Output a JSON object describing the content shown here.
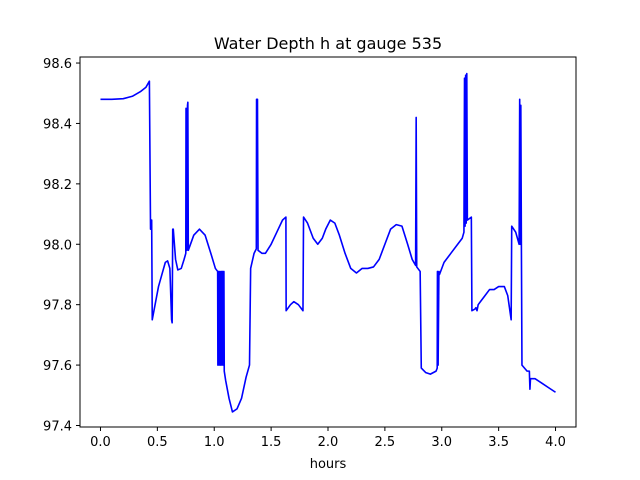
{
  "chart_data": {
    "type": "line",
    "title": "Water Depth h at gauge 535",
    "xlabel": "hours",
    "ylabel": "",
    "xlim": [
      -0.18,
      4.18
    ],
    "ylim": [
      97.395,
      98.62
    ],
    "xticks": [
      0.0,
      0.5,
      1.0,
      1.5,
      2.0,
      2.5,
      3.0,
      3.5,
      4.0
    ],
    "xtick_labels": [
      "0.0",
      "0.5",
      "1.0",
      "1.5",
      "2.0",
      "2.5",
      "3.0",
      "3.5",
      "4.0"
    ],
    "yticks": [
      97.4,
      97.6,
      97.8,
      98.0,
      98.2,
      98.4,
      98.6
    ],
    "ytick_labels": [
      "97.4",
      "97.6",
      "97.8",
      "98.0",
      "98.2",
      "98.4",
      "98.6"
    ],
    "grid": false,
    "legend": "none",
    "series": [
      {
        "color": "#0000ff",
        "points": [
          [
            0.0,
            98.48
          ],
          [
            0.1,
            98.48
          ],
          [
            0.2,
            98.482
          ],
          [
            0.28,
            98.49
          ],
          [
            0.35,
            98.505
          ],
          [
            0.4,
            98.52
          ],
          [
            0.43,
            98.54
          ],
          [
            0.44,
            98.05
          ],
          [
            0.45,
            98.08
          ],
          [
            0.455,
            97.75
          ],
          [
            0.47,
            97.78
          ],
          [
            0.49,
            97.82
          ],
          [
            0.51,
            97.86
          ],
          [
            0.54,
            97.9
          ],
          [
            0.57,
            97.94
          ],
          [
            0.59,
            97.945
          ],
          [
            0.61,
            97.92
          ],
          [
            0.625,
            97.75
          ],
          [
            0.63,
            97.74
          ],
          [
            0.635,
            98.05
          ],
          [
            0.64,
            98.05
          ],
          [
            0.66,
            97.95
          ],
          [
            0.68,
            97.915
          ],
          [
            0.71,
            97.92
          ],
          [
            0.735,
            97.95
          ],
          [
            0.75,
            97.97
          ],
          [
            0.752,
            98.45
          ],
          [
            0.758,
            97.98
          ],
          [
            0.765,
            98.46
          ],
          [
            0.768,
            98.47
          ],
          [
            0.772,
            97.98
          ],
          [
            0.82,
            98.03
          ],
          [
            0.87,
            98.05
          ],
          [
            0.92,
            98.03
          ],
          [
            0.97,
            97.97
          ],
          [
            1.01,
            97.92
          ],
          [
            1.03,
            97.91
          ],
          [
            1.032,
            97.6
          ],
          [
            1.038,
            97.91
          ],
          [
            1.044,
            97.6
          ],
          [
            1.05,
            97.91
          ],
          [
            1.056,
            97.6
          ],
          [
            1.062,
            97.91
          ],
          [
            1.068,
            97.6
          ],
          [
            1.074,
            97.91
          ],
          [
            1.08,
            97.6
          ],
          [
            1.085,
            97.91
          ],
          [
            1.088,
            97.58
          ],
          [
            1.1,
            97.55
          ],
          [
            1.13,
            97.49
          ],
          [
            1.16,
            97.445
          ],
          [
            1.2,
            97.455
          ],
          [
            1.24,
            97.49
          ],
          [
            1.28,
            97.56
          ],
          [
            1.31,
            97.6
          ],
          [
            1.32,
            97.92
          ],
          [
            1.35,
            97.97
          ],
          [
            1.37,
            97.985
          ],
          [
            1.372,
            98.48
          ],
          [
            1.38,
            98.48
          ],
          [
            1.385,
            97.98
          ],
          [
            1.42,
            97.97
          ],
          [
            1.45,
            97.97
          ],
          [
            1.5,
            98.0
          ],
          [
            1.55,
            98.04
          ],
          [
            1.6,
            98.08
          ],
          [
            1.63,
            98.09
          ],
          [
            1.632,
            97.78
          ],
          [
            1.67,
            97.8
          ],
          [
            1.7,
            97.81
          ],
          [
            1.74,
            97.8
          ],
          [
            1.78,
            97.78
          ],
          [
            1.785,
            98.09
          ],
          [
            1.82,
            98.07
          ],
          [
            1.87,
            98.02
          ],
          [
            1.91,
            98.0
          ],
          [
            1.95,
            98.02
          ],
          [
            1.98,
            98.05
          ],
          [
            2.02,
            98.08
          ],
          [
            2.06,
            98.07
          ],
          [
            2.1,
            98.03
          ],
          [
            2.15,
            97.97
          ],
          [
            2.2,
            97.92
          ],
          [
            2.25,
            97.905
          ],
          [
            2.3,
            97.92
          ],
          [
            2.35,
            97.92
          ],
          [
            2.4,
            97.925
          ],
          [
            2.45,
            97.95
          ],
          [
            2.5,
            98.0
          ],
          [
            2.55,
            98.05
          ],
          [
            2.6,
            98.065
          ],
          [
            2.65,
            98.06
          ],
          [
            2.7,
            98.0
          ],
          [
            2.74,
            97.95
          ],
          [
            2.77,
            97.93
          ],
          [
            2.775,
            98.42
          ],
          [
            2.78,
            97.925
          ],
          [
            2.8,
            97.915
          ],
          [
            2.81,
            97.91
          ],
          [
            2.82,
            97.59
          ],
          [
            2.86,
            97.575
          ],
          [
            2.9,
            97.57
          ],
          [
            2.95,
            97.58
          ],
          [
            2.96,
            97.59
          ],
          [
            2.962,
            97.91
          ],
          [
            2.968,
            97.6
          ],
          [
            2.975,
            97.91
          ],
          [
            2.98,
            97.9
          ],
          [
            3.02,
            97.94
          ],
          [
            3.08,
            97.97
          ],
          [
            3.14,
            98.0
          ],
          [
            3.18,
            98.02
          ],
          [
            3.195,
            98.04
          ],
          [
            3.2,
            98.55
          ],
          [
            3.205,
            98.06
          ],
          [
            3.21,
            98.56
          ],
          [
            3.215,
            98.07
          ],
          [
            3.22,
            98.565
          ],
          [
            3.225,
            98.08
          ],
          [
            3.26,
            98.09
          ],
          [
            3.265,
            97.78
          ],
          [
            3.29,
            97.785
          ],
          [
            3.3,
            97.79
          ],
          [
            3.31,
            97.78
          ],
          [
            3.32,
            97.8
          ],
          [
            3.34,
            97.81
          ],
          [
            3.36,
            97.82
          ],
          [
            3.38,
            97.83
          ],
          [
            3.42,
            97.85
          ],
          [
            3.46,
            97.85
          ],
          [
            3.5,
            97.86
          ],
          [
            3.55,
            97.86
          ],
          [
            3.58,
            97.83
          ],
          [
            3.61,
            97.75
          ],
          [
            3.615,
            98.06
          ],
          [
            3.65,
            98.04
          ],
          [
            3.68,
            98.0
          ],
          [
            3.685,
            98.48
          ],
          [
            3.69,
            98.0
          ],
          [
            3.695,
            98.46
          ],
          [
            3.7,
            98.0
          ],
          [
            3.705,
            97.6
          ],
          [
            3.75,
            97.58
          ],
          [
            3.77,
            97.58
          ],
          [
            3.775,
            97.52
          ],
          [
            3.78,
            97.555
          ],
          [
            3.82,
            97.555
          ],
          [
            3.88,
            97.54
          ],
          [
            3.94,
            97.525
          ],
          [
            4.0,
            97.51
          ]
        ]
      }
    ]
  }
}
